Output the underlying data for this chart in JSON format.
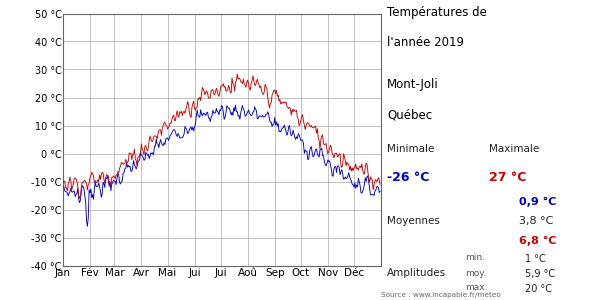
{
  "title_line1": "Températures de",
  "title_line2": "l'année 2019",
  "subtitle_line1": "Mont-Joli",
  "subtitle_line2": "Québec",
  "source": "Source : www.incapable.fr/meteo",
  "xlabel_months": [
    "Jan",
    "Fév",
    "Mar",
    "Avr",
    "Mai",
    "Jui",
    "Jui",
    "Aoû",
    "Sep",
    "Oct",
    "Nov",
    "Déc"
  ],
  "ylim": [
    -40,
    50
  ],
  "yticks": [
    -40,
    -30,
    -20,
    -10,
    0,
    10,
    20,
    30,
    40,
    50
  ],
  "min_temp_value": "-26 °C",
  "max_temp_value": "27 °C",
  "mean_min_value": "0,9 °C",
  "mean_value": "3,8 °C",
  "mean_max_value": "6,8 °C",
  "amp_min": "1 °C",
  "amp_moy": "5,9 °C",
  "amp_max": "20 °C",
  "color_min": "#0000cc",
  "color_max": "#cc0000",
  "color_mean": "#000000",
  "color_dark": "#333333",
  "bg_color": "#ffffff",
  "grid_color": "#aaaaaa",
  "plot_bg": "#ffffff"
}
